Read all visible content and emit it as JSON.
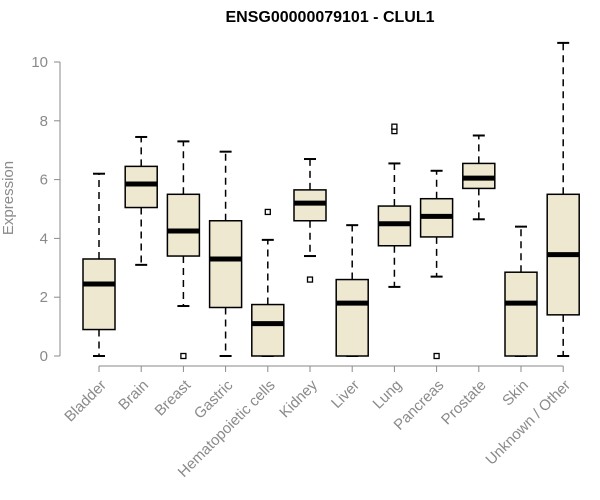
{
  "chart_data": {
    "type": "boxplot",
    "title": "ENSG00000079101 - CLUL1",
    "xlabel": "",
    "ylabel": "Expression",
    "ylim": [
      0,
      10.7
    ],
    "yticks": [
      0,
      2,
      4,
      6,
      8,
      10
    ],
    "colors": {
      "box_fill": "#efe8d0",
      "line": "#000000",
      "axis": "#8a8a8a"
    },
    "categories": [
      "Bladder",
      "Brain",
      "Breast",
      "Gastric",
      "Hematopoietic cells",
      "Kidney",
      "Liver",
      "Lung",
      "Pancreas",
      "Prostate",
      "Skin",
      "Unknown / Other"
    ],
    "boxes": [
      {
        "name": "Bladder",
        "min": 0.0,
        "q1": 0.9,
        "median": 2.45,
        "q3": 3.3,
        "max": 6.2,
        "outliers": []
      },
      {
        "name": "Brain",
        "min": 3.1,
        "q1": 5.05,
        "median": 5.85,
        "q3": 6.45,
        "max": 7.45,
        "outliers": []
      },
      {
        "name": "Breast",
        "min": 1.7,
        "q1": 3.4,
        "median": 4.25,
        "q3": 5.5,
        "max": 7.3,
        "outliers": [
          0.0
        ]
      },
      {
        "name": "Gastric",
        "min": 0.0,
        "q1": 1.65,
        "median": 3.3,
        "q3": 4.6,
        "max": 6.95,
        "outliers": []
      },
      {
        "name": "Hematopoietic cells",
        "min": 0.0,
        "q1": 0.0,
        "median": 1.1,
        "q3": 1.75,
        "max": 3.95,
        "outliers": [
          4.9
        ]
      },
      {
        "name": "Kidney",
        "min": 3.4,
        "q1": 4.6,
        "median": 5.2,
        "q3": 5.65,
        "max": 6.7,
        "outliers": [
          2.6
        ]
      },
      {
        "name": "Liver",
        "min": 0.0,
        "q1": 0.0,
        "median": 1.8,
        "q3": 2.6,
        "max": 4.45,
        "outliers": []
      },
      {
        "name": "Lung",
        "min": 2.35,
        "q1": 3.75,
        "median": 4.5,
        "q3": 5.1,
        "max": 6.55,
        "outliers": [
          7.65,
          7.8
        ]
      },
      {
        "name": "Pancreas",
        "min": 2.7,
        "q1": 4.05,
        "median": 4.75,
        "q3": 5.35,
        "max": 6.3,
        "outliers": [
          0.0
        ]
      },
      {
        "name": "Prostate",
        "min": 4.65,
        "q1": 5.7,
        "median": 6.05,
        "q3": 6.55,
        "max": 7.5,
        "outliers": []
      },
      {
        "name": "Skin",
        "min": 0.0,
        "q1": 0.0,
        "median": 1.8,
        "q3": 2.85,
        "max": 4.4,
        "outliers": []
      },
      {
        "name": "Unknown / Other",
        "min": 0.0,
        "q1": 1.4,
        "median": 3.45,
        "q3": 5.5,
        "max": 10.65,
        "outliers": []
      }
    ]
  }
}
